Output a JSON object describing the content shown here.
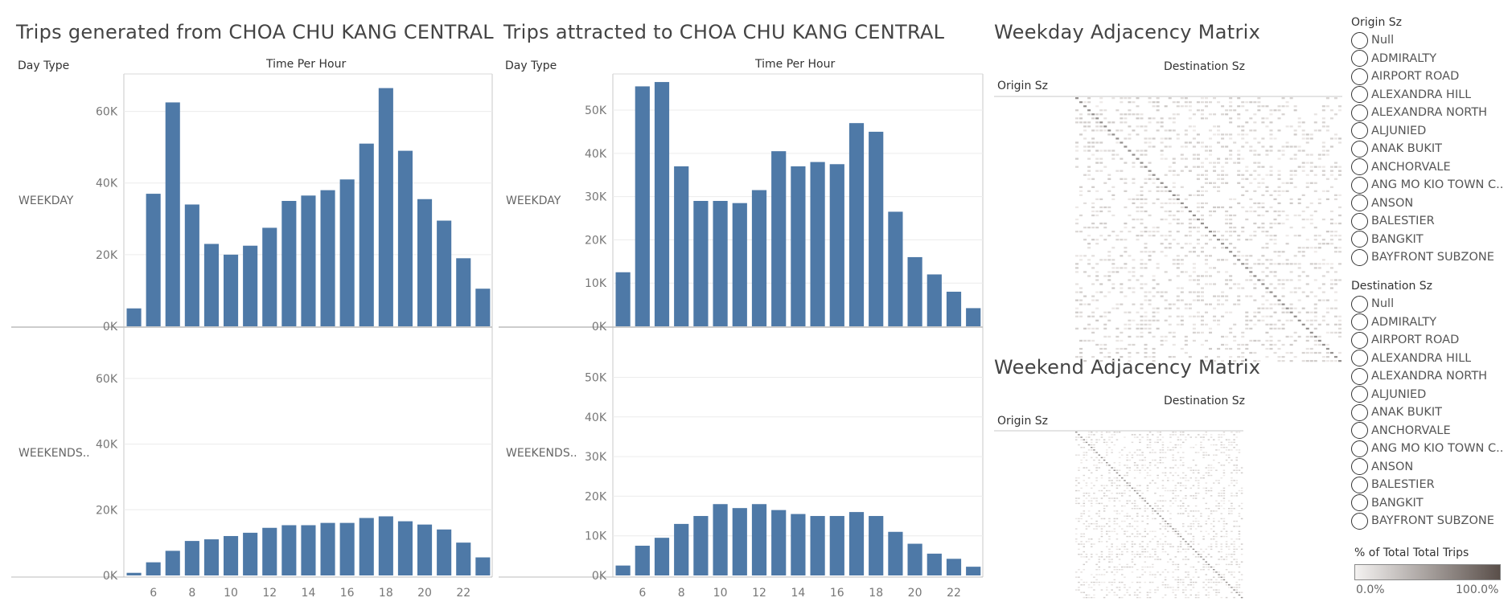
{
  "left_panel": {
    "title": "Trips generated from CHOA CHU KANG CENTRAL",
    "day_type_header": "Day Type",
    "time_header": "Time Per Hour"
  },
  "middle_panel": {
    "title": "Trips attracted to CHOA CHU KANG CENTRAL",
    "day_type_header": "Day Type",
    "time_header": "Time Per Hour"
  },
  "weekday_matrix": {
    "title": "Weekday Adjacency Matrix",
    "col_header": "Destination Sz",
    "row_header": "Origin Sz"
  },
  "weekend_matrix": {
    "title": "Weekend Adjacency Matrix",
    "col_header": "Destination Sz",
    "row_header": "Origin Sz"
  },
  "origin_filter": {
    "title": "Origin Sz",
    "items": [
      "Null",
      "ADMIRALTY",
      "AIRPORT ROAD",
      "ALEXANDRA HILL",
      "ALEXANDRA NORTH",
      "ALJUNIED",
      "ANAK BUKIT",
      "ANCHORVALE",
      "ANG MO KIO TOWN C..",
      "ANSON",
      "BALESTIER",
      "BANGKIT",
      "BAYFRONT SUBZONE"
    ]
  },
  "destination_filter": {
    "title": "Destination Sz",
    "items": [
      "Null",
      "ADMIRALTY",
      "AIRPORT ROAD",
      "ALEXANDRA HILL",
      "ALEXANDRA NORTH",
      "ALJUNIED",
      "ANAK BUKIT",
      "ANCHORVALE",
      "ANG MO KIO TOWN C..",
      "ANSON",
      "BALESTIER",
      "BANGKIT",
      "BAYFRONT SUBZONE"
    ]
  },
  "color_legend": {
    "title": "% of Total Total Trips",
    "min_label": "0.0%",
    "max_label": "100.0%",
    "color_low": "#f4f2f1",
    "color_high": "#5a4f4a"
  },
  "chart_data": [
    {
      "type": "bar",
      "title": "Trips generated from CHOA CHU KANG CENTRAL",
      "xlabel": "Time Per Hour",
      "ylabel": "Day Type",
      "color": "#4e79a7",
      "x": [
        5,
        6,
        7,
        8,
        9,
        10,
        11,
        12,
        13,
        14,
        15,
        16,
        17,
        18,
        19,
        20,
        21,
        22,
        23
      ],
      "x_ticks": [
        6,
        8,
        10,
        12,
        14,
        16,
        18,
        20,
        22
      ],
      "y_ticks": [
        0,
        20000,
        40000,
        60000
      ],
      "y_tick_labels": [
        "0K",
        "20K",
        "40K",
        "60K"
      ],
      "ylim": [
        0,
        70000
      ],
      "series": [
        {
          "name": "WEEKDAY",
          "values": [
            5000,
            37000,
            62500,
            34000,
            23000,
            20000,
            22500,
            27500,
            35000,
            36500,
            38000,
            41000,
            51000,
            66500,
            49000,
            35500,
            29500,
            19000,
            10500
          ]
        },
        {
          "name": "WEEKENDS..",
          "values": [
            800,
            4000,
            7500,
            10500,
            11000,
            12000,
            13000,
            14500,
            15300,
            15300,
            16000,
            16000,
            17500,
            18000,
            16500,
            15500,
            14000,
            10000,
            5500
          ]
        }
      ]
    },
    {
      "type": "bar",
      "title": "Trips attracted to CHOA CHU KANG CENTRAL",
      "xlabel": "Time Per Hour",
      "ylabel": "Day Type",
      "color": "#4e79a7",
      "x": [
        5,
        6,
        7,
        8,
        9,
        10,
        11,
        12,
        13,
        14,
        15,
        16,
        17,
        18,
        19,
        20,
        21,
        22,
        23
      ],
      "x_ticks": [
        6,
        8,
        10,
        12,
        14,
        16,
        18,
        20,
        22
      ],
      "y_ticks": [
        0,
        10000,
        20000,
        30000,
        40000,
        50000
      ],
      "y_tick_labels": [
        "0K",
        "10K",
        "20K",
        "30K",
        "40K",
        "50K"
      ],
      "ylim": [
        0,
        58000
      ],
      "series": [
        {
          "name": "WEEKDAY",
          "values": [
            12500,
            55500,
            56500,
            37000,
            29000,
            29000,
            28500,
            31500,
            40500,
            37000,
            38000,
            37500,
            47000,
            45000,
            26500,
            16000,
            12000,
            8000,
            4200
          ]
        },
        {
          "name": "WEEKENDS..",
          "values": [
            2500,
            7500,
            9500,
            13000,
            15000,
            18000,
            17000,
            18000,
            16500,
            15500,
            15000,
            15000,
            16000,
            15000,
            11000,
            8000,
            5500,
            4200,
            2200
          ]
        }
      ]
    }
  ]
}
